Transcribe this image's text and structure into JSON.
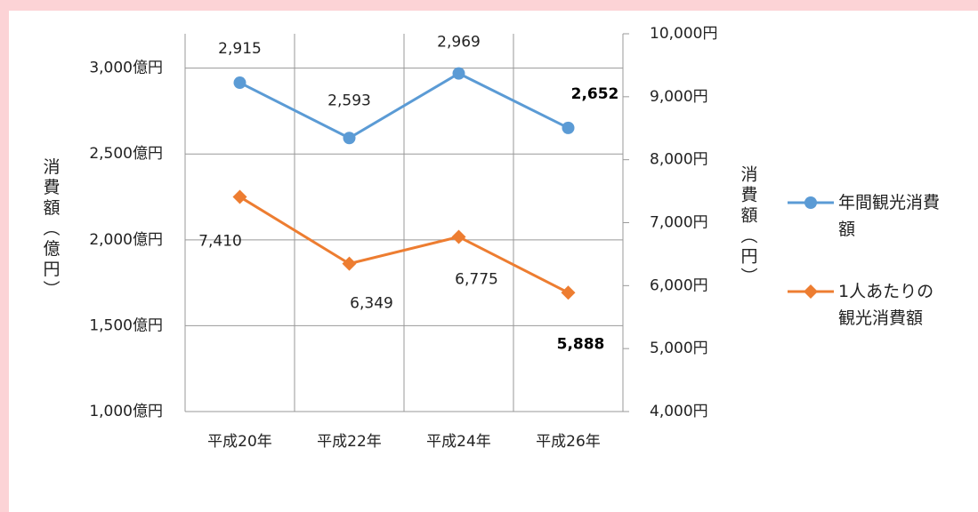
{
  "chart_data": {
    "type": "line",
    "categories": [
      "平成20年",
      "平成22年",
      "平成24年",
      "平成26年"
    ],
    "series": [
      {
        "name": "年間観光消費額",
        "color": "#5b9bd5",
        "marker": "circle",
        "axis": "y",
        "values": [
          2915,
          2593,
          2969,
          2652
        ],
        "value_labels": [
          "2,915",
          "2,593",
          "2,969",
          "2,652"
        ]
      },
      {
        "name": "1人あたりの観光消費額",
        "color": "#ed7d31",
        "marker": "diamond",
        "axis": "y2",
        "values": [
          7410,
          6349,
          6775,
          5888
        ],
        "value_labels": [
          "7,410",
          "6,349",
          "6,775",
          "5,888"
        ]
      }
    ],
    "ylabel": "消費額（億円）",
    "y2label": "消費額（円）",
    "ylim": [
      1000,
      3200
    ],
    "yticks": [
      {
        "value": 1000,
        "label": "1,000億円"
      },
      {
        "value": 1500,
        "label": "1,500億円"
      },
      {
        "value": 2000,
        "label": "2,000億円"
      },
      {
        "value": 2500,
        "label": "2,500億円"
      },
      {
        "value": 3000,
        "label": "3,000億円"
      }
    ],
    "y2lim": [
      4000,
      10000
    ],
    "y2ticks": [
      {
        "value": 4000,
        "label": "4,000円"
      },
      {
        "value": 5000,
        "label": "5,000円"
      },
      {
        "value": 6000,
        "label": "6,000円"
      },
      {
        "value": 7000,
        "label": "7,000円"
      },
      {
        "value": 8000,
        "label": "8,000円"
      },
      {
        "value": 9000,
        "label": "9,000円"
      },
      {
        "value": 10000,
        "label": "10,000円"
      }
    ],
    "grid": true,
    "legend": "right"
  }
}
